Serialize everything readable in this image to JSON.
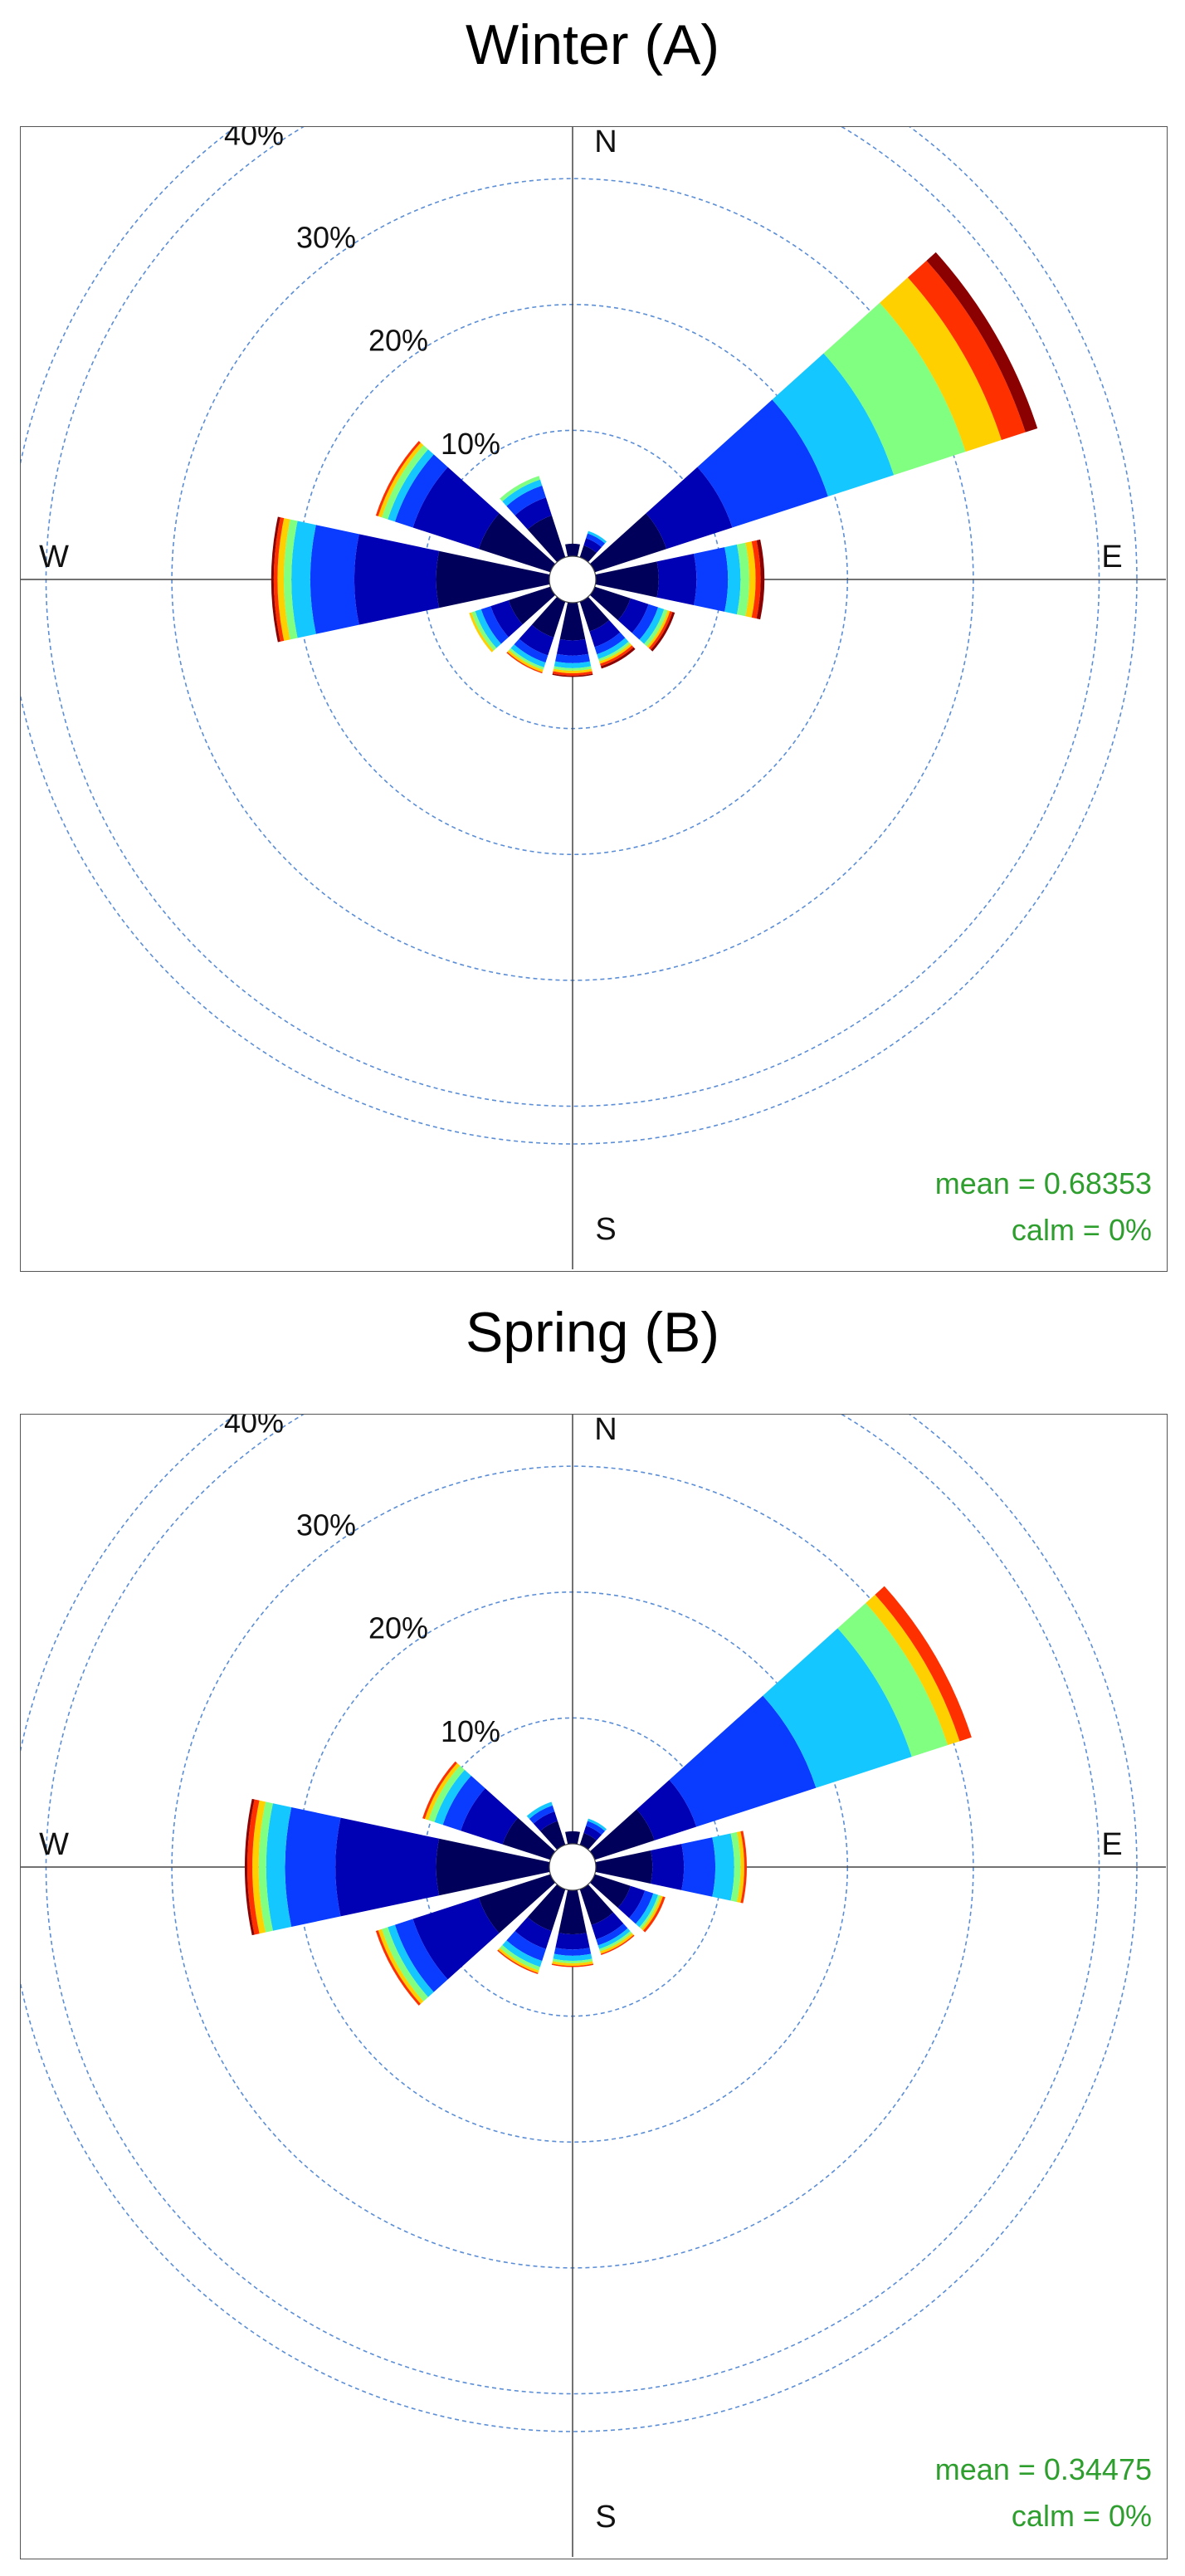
{
  "chart_data": [
    {
      "type": "polar-bar",
      "title": "Winter (A)",
      "directions": [
        "N",
        "E",
        "S",
        "W"
      ],
      "ring_labels": [
        "10%",
        "20%",
        "30%",
        "40%"
      ],
      "rmax": 43,
      "color_bins": [
        "#00005a",
        "#0000b4",
        "#0a3cff",
        "#14c8ff",
        "#80ff80",
        "#ffd000",
        "#ff3000",
        "#8b0000"
      ],
      "sectors": [
        {
          "angle": 0,
          "segments": [
            1.0
          ]
        },
        {
          "angle": 30,
          "segments": [
            1.0,
            0.6,
            0.4,
            0.2
          ]
        },
        {
          "angle": 60,
          "segments": [
            6.0,
            5.5,
            8.0,
            5.5,
            6.0,
            3.0,
            2.0,
            1.0
          ]
        },
        {
          "angle": 90,
          "segments": [
            5.0,
            3.0,
            2.5,
            1.0,
            0.7,
            0.5,
            0.4,
            0.3
          ]
        },
        {
          "angle": 120,
          "segments": [
            3.0,
            1.5,
            0.8,
            0.5,
            0.3,
            0.2,
            0.2,
            0.2
          ]
        },
        {
          "angle": 150,
          "segments": [
            2.5,
            1.3,
            0.6,
            0.4,
            0.2,
            0.2,
            0.2,
            0.2
          ]
        },
        {
          "angle": 180,
          "segments": [
            3.0,
            1.2,
            0.6,
            0.4,
            0.2,
            0.2,
            0.2,
            0.1
          ]
        },
        {
          "angle": 210,
          "segments": [
            3.0,
            1.5,
            0.6,
            0.4,
            0.2,
            0.2,
            0.1
          ]
        },
        {
          "angle": 240,
          "segments": [
            3.5,
            1.5,
            0.8,
            0.5,
            0.3,
            0.2
          ]
        },
        {
          "angle": 270,
          "segments": [
            9.0,
            6.5,
            3.5,
            1.5,
            0.6,
            0.5,
            0.3,
            0.2
          ]
        },
        {
          "angle": 300,
          "segments": [
            6.0,
            5.5,
            1.5,
            0.6,
            0.5,
            0.3,
            0.2
          ]
        },
        {
          "angle": 330,
          "segments": [
            3.5,
            1.5,
            1.0,
            0.5,
            0.3
          ]
        }
      ],
      "mean_label": "mean = 0.68353",
      "calm_label": "calm = 0%"
    },
    {
      "type": "polar-bar",
      "title": "Spring (B)",
      "directions": [
        "N",
        "E",
        "S",
        "W"
      ],
      "ring_labels": [
        "10%",
        "20%",
        "30%",
        "40%"
      ],
      "rmax": 43,
      "color_bins": [
        "#00005a",
        "#0000b4",
        "#0a3cff",
        "#14c8ff",
        "#80ff80",
        "#ffd000",
        "#ff3000",
        "#8b0000"
      ],
      "sectors": [
        {
          "angle": 0,
          "segments": [
            1.0
          ]
        },
        {
          "angle": 30,
          "segments": [
            1.0,
            0.6,
            0.4,
            0.2
          ]
        },
        {
          "angle": 60,
          "segments": [
            5.0,
            3.5,
            10.0,
            8.0,
            3.0,
            1.0,
            1.0
          ]
        },
        {
          "angle": 90,
          "segments": [
            4.5,
            2.5,
            2.5,
            1.5,
            0.5,
            0.3,
            0.2
          ]
        },
        {
          "angle": 120,
          "segments": [
            3.0,
            1.2,
            0.7,
            0.4,
            0.2,
            0.2,
            0.2
          ]
        },
        {
          "angle": 150,
          "segments": [
            3.0,
            1.2,
            0.5,
            0.3,
            0.2,
            0.2,
            0.1
          ]
        },
        {
          "angle": 180,
          "segments": [
            3.5,
            1.2,
            0.5,
            0.4,
            0.2,
            0.2,
            0.1
          ]
        },
        {
          "angle": 210,
          "segments": [
            3.5,
            1.5,
            1.0,
            0.5,
            0.3,
            0.2,
            0.1
          ]
        },
        {
          "angle": 240,
          "segments": [
            6.0,
            5.5,
            1.5,
            0.6,
            0.5,
            0.3,
            0.2
          ]
        },
        {
          "angle": 270,
          "segments": [
            9.0,
            8.0,
            4.0,
            1.5,
            0.6,
            0.5,
            0.4,
            0.2
          ]
        },
        {
          "angle": 300,
          "segments": [
            4.0,
            3.5,
            1.5,
            0.7,
            0.5,
            0.3,
            0.2
          ]
        },
        {
          "angle": 330,
          "segments": [
            2.0,
            0.8,
            0.5,
            0.3
          ]
        }
      ],
      "mean_label": "mean = 0.34475",
      "calm_label": "calm = 0%"
    }
  ]
}
